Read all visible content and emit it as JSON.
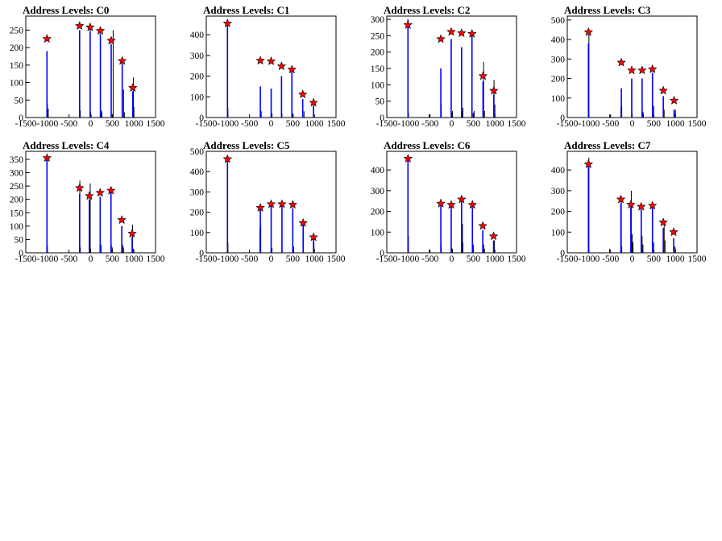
{
  "chart_data": [
    {
      "type": "bar",
      "title": "Address Levels: C0",
      "xlim": [
        -1500,
        1500
      ],
      "xticks": [
        -1500,
        -1000,
        -500,
        0,
        500,
        1000,
        1500
      ],
      "ylim": [
        0,
        290
      ],
      "yticks": [
        0,
        50,
        100,
        150,
        200,
        250
      ],
      "black_x": [
        -1000,
        -980,
        -250,
        -240,
        -10,
        0,
        10,
        230,
        250,
        260,
        500,
        520,
        760,
        780,
        970,
        990,
        1000
      ],
      "black_y": [
        40,
        25,
        30,
        20,
        265,
        15,
        10,
        10,
        20,
        15,
        10,
        250,
        80,
        15,
        20,
        115,
        30
      ],
      "blue_x": [
        -1010,
        -255,
        -12,
        225,
        475,
        730,
        975
      ],
      "blue_y": [
        190,
        250,
        245,
        240,
        210,
        155,
        75
      ],
      "star_x": [
        -1010,
        -255,
        -12,
        225,
        475,
        730,
        975
      ],
      "star_y": [
        225,
        262,
        258,
        248,
        220,
        162,
        85
      ]
    },
    {
      "type": "bar",
      "title": "Address Levels: C1",
      "xlim": [
        -1500,
        1500
      ],
      "xticks": [
        -1500,
        -1000,
        -500,
        0,
        500,
        1000,
        1500
      ],
      "ylim": [
        0,
        490
      ],
      "yticks": [
        0,
        100,
        200,
        300,
        400
      ],
      "black_x": [
        -1000,
        -250,
        -230,
        0,
        20,
        250,
        500,
        510,
        760,
        980
      ],
      "black_y": [
        45,
        50,
        30,
        35,
        20,
        20,
        20,
        15,
        30,
        60
      ],
      "blue_x": [
        -1010,
        -250,
        0,
        240,
        480,
        730,
        980
      ],
      "blue_y": [
        450,
        150,
        140,
        200,
        220,
        90,
        55
      ],
      "star_x": [
        -1010,
        -250,
        0,
        240,
        480,
        730,
        980
      ],
      "star_y": [
        455,
        275,
        272,
        248,
        232,
        112,
        72
      ]
    },
    {
      "type": "bar",
      "title": "Address Levels: C2",
      "xlim": [
        -1500,
        1500
      ],
      "xticks": [
        -1500,
        -1000,
        -500,
        0,
        500,
        1000,
        1500
      ],
      "ylim": [
        0,
        310
      ],
      "yticks": [
        0,
        50,
        100,
        150,
        200,
        250,
        300
      ],
      "black_x": [
        -1000,
        -520,
        -250,
        -240,
        0,
        20,
        250,
        260,
        500,
        520,
        740,
        760,
        980,
        1000
      ],
      "black_y": [
        15,
        10,
        85,
        40,
        15,
        20,
        20,
        30,
        15,
        20,
        170,
        20,
        115,
        40
      ],
      "blue_x": [
        -1010,
        -250,
        -10,
        230,
        470,
        725,
        975
      ],
      "blue_y": [
        300,
        150,
        240,
        215,
        250,
        110,
        70
      ],
      "star_x": [
        -1010,
        -250,
        -10,
        230,
        470,
        725,
        975
      ],
      "star_y": [
        283,
        240,
        262,
        258,
        256,
        127,
        82
      ]
    },
    {
      "type": "bar",
      "title": "Address Levels: C3",
      "xlim": [
        -1500,
        1500
      ],
      "xticks": [
        -1500,
        -1000,
        -500,
        0,
        500,
        1000,
        1500
      ],
      "ylim": [
        0,
        520
      ],
      "yticks": [
        0,
        100,
        200,
        300,
        400,
        500
      ],
      "black_x": [
        -1000,
        -520,
        -260,
        -240,
        0,
        250,
        260,
        480,
        500,
        740,
        990,
        1000
      ],
      "black_y": [
        440,
        15,
        50,
        60,
        20,
        30,
        20,
        20,
        60,
        40,
        20,
        40
      ],
      "blue_x": [
        -1010,
        -250,
        -10,
        230,
        470,
        720,
        970
      ],
      "blue_y": [
        380,
        150,
        200,
        200,
        230,
        110,
        40
      ],
      "star_x": [
        -1010,
        -250,
        -10,
        230,
        470,
        720,
        970
      ],
      "star_y": [
        438,
        282,
        242,
        242,
        248,
        138,
        87
      ]
    },
    {
      "type": "bar",
      "title": "Address Levels: C4",
      "xlim": [
        -1500,
        1500
      ],
      "xticks": [
        -1500,
        -1000,
        -500,
        0,
        500,
        1000,
        1500
      ],
      "ylim": [
        0,
        380
      ],
      "yticks": [
        0,
        50,
        100,
        150,
        200,
        250,
        300,
        350
      ],
      "black_x": [
        -1010,
        -1000,
        -260,
        -250,
        -240,
        -10,
        0,
        230,
        240,
        480,
        500,
        740,
        760,
        970,
        990
      ],
      "black_y": [
        170,
        25,
        15,
        270,
        20,
        260,
        15,
        20,
        30,
        30,
        20,
        30,
        20,
        105,
        15
      ],
      "blue_x": [
        -1010,
        -255,
        -30,
        220,
        470,
        720,
        960
      ],
      "blue_y": [
        350,
        220,
        200,
        210,
        230,
        100,
        60
      ],
      "star_x": [
        -1010,
        -255,
        -30,
        220,
        470,
        720,
        960
      ],
      "star_y": [
        355,
        243,
        213,
        225,
        233,
        123,
        72
      ]
    },
    {
      "type": "bar",
      "title": "Address Levels: C5",
      "xlim": [
        -1500,
        1500
      ],
      "xticks": [
        -1500,
        -1000,
        -500,
        0,
        500,
        1000,
        1500
      ],
      "ylim": [
        0,
        500
      ],
      "yticks": [
        0,
        100,
        200,
        300,
        400,
        500
      ],
      "black_x": [
        -1000,
        -260,
        -240,
        0,
        20,
        250,
        500,
        520,
        740,
        990,
        1000
      ],
      "black_y": [
        50,
        120,
        140,
        60,
        25,
        60,
        55,
        30,
        40,
        50,
        20
      ],
      "blue_x": [
        -1010,
        -250,
        0,
        250,
        500,
        740,
        980
      ],
      "blue_y": [
        460,
        230,
        230,
        230,
        220,
        140,
        80
      ],
      "star_x": [
        -1010,
        -250,
        0,
        250,
        500,
        740,
        980
      ],
      "star_y": [
        462,
        222,
        240,
        240,
        237,
        147,
        77
      ]
    },
    {
      "type": "bar",
      "title": "Address Levels: C6",
      "xlim": [
        -1500,
        1500
      ],
      "xticks": [
        -1500,
        -1000,
        -500,
        0,
        500,
        1000,
        1500
      ],
      "ylim": [
        0,
        490
      ],
      "yticks": [
        0,
        100,
        200,
        300,
        400
      ],
      "black_x": [
        -1000,
        -520,
        -250,
        -240,
        0,
        20,
        250,
        260,
        500,
        740,
        760,
        990
      ],
      "black_y": [
        80,
        15,
        260,
        40,
        25,
        20,
        140,
        50,
        40,
        40,
        20,
        60
      ],
      "blue_x": [
        -1010,
        -250,
        -10,
        230,
        480,
        720,
        970
      ],
      "blue_y": [
        450,
        240,
        230,
        250,
        220,
        110,
        60
      ],
      "star_x": [
        -1010,
        -250,
        -10,
        230,
        480,
        720,
        970
      ],
      "star_y": [
        455,
        238,
        232,
        258,
        232,
        130,
        80
      ]
    },
    {
      "type": "bar",
      "title": "Address Levels: C7",
      "xlim": [
        -1500,
        1500
      ],
      "xticks": [
        -1500,
        -1000,
        -500,
        0,
        500,
        1000,
        1500
      ],
      "ylim": [
        0,
        490
      ],
      "yticks": [
        0,
        100,
        200,
        300,
        400
      ],
      "black_x": [
        -1000,
        -520,
        -250,
        -240,
        -20,
        0,
        20,
        230,
        250,
        500,
        740,
        760,
        990,
        1000
      ],
      "black_y": [
        460,
        20,
        250,
        30,
        300,
        90,
        50,
        80,
        40,
        50,
        140,
        60,
        30,
        20
      ],
      "blue_x": [
        -1010,
        -260,
        -30,
        210,
        470,
        720,
        960
      ],
      "blue_y": [
        420,
        240,
        220,
        210,
        220,
        120,
        70
      ],
      "star_x": [
        -1010,
        -260,
        -30,
        210,
        470,
        720,
        960
      ],
      "star_y": [
        428,
        258,
        233,
        223,
        228,
        147,
        100
      ]
    }
  ]
}
